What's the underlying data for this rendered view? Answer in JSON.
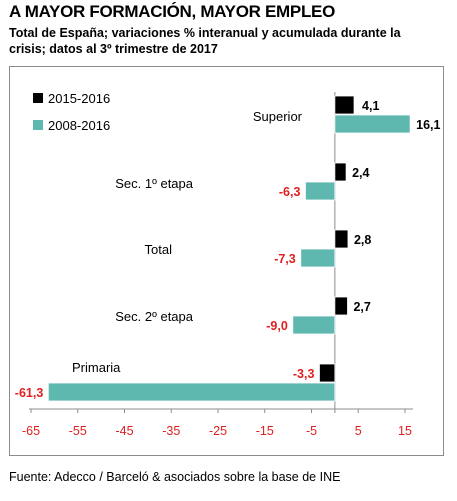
{
  "header": {
    "title": "A MAYOR FORMACIÓN, MAYOR EMPLEO",
    "subtitle": "Total de España; variaciones % interanual y acumulada durante la crisis; datos al 3º trimestre de 2017"
  },
  "footer": {
    "source": "Fuente: Adecco / Barceló & asociados sobre la base de INE"
  },
  "chart_data": {
    "type": "bar",
    "orientation": "horizontal",
    "categories": [
      "Superior",
      "Sec. 1º etapa",
      "Total",
      "Sec. 2º etapa",
      "Primaria"
    ],
    "series": [
      {
        "name": "2015-2016",
        "color": "#000000",
        "values": [
          4.1,
          2.4,
          2.8,
          2.7,
          -3.3
        ]
      },
      {
        "name": "2008-2016",
        "color": "#5fb8b0",
        "values": [
          16.1,
          -6.3,
          -7.3,
          -9.0,
          -61.3
        ]
      }
    ],
    "value_labels": [
      [
        "4,1",
        "2,4",
        "2,8",
        "2,7",
        "-3,3"
      ],
      [
        "16,1",
        "-6,3",
        "-7,3",
        "-9,0",
        "-61,3"
      ]
    ],
    "xlim": [
      -65,
      15
    ],
    "xticks": [
      -65,
      -55,
      -45,
      -35,
      -25,
      -15,
      -5,
      5,
      15
    ],
    "xtick_labels": [
      "-65",
      "-55",
      "-45",
      "-35",
      "-25",
      "-15",
      "-5",
      "5",
      "15"
    ],
    "legend_position": "top-left",
    "grid": false,
    "negative_label_color": "#e02020",
    "tick_label_color": "#e02020"
  }
}
